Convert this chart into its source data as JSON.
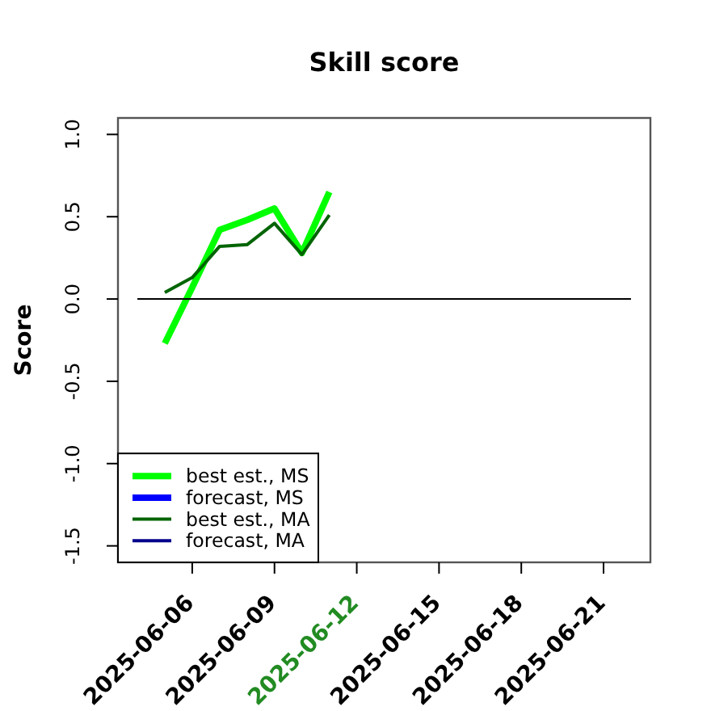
{
  "chart_data": {
    "type": "line",
    "title": "Skill score",
    "ylabel": "Score",
    "xlim": [
      "2025-06-03T07:00",
      "2025-06-22T17:00"
    ],
    "xticks": [
      "2025-06-06",
      "2025-06-09",
      "2025-06-12",
      "2025-06-15",
      "2025-06-18",
      "2025-06-21"
    ],
    "ylim": [
      -1.6,
      1.1
    ],
    "yticks": [
      {
        "value": -1.5,
        "label": "-1.5"
      },
      {
        "value": -1,
        "label": "-1.0"
      },
      {
        "value": -0.5,
        "label": "-0.5"
      },
      {
        "value": 0,
        "label": "0.0"
      },
      {
        "value": 0.5,
        "label": "0.5"
      },
      {
        "value": 1,
        "label": "1.0"
      }
    ],
    "x": [
      "2025-06-05",
      "2025-06-06",
      "2025-06-07",
      "2025-06-08",
      "2025-06-09",
      "2025-06-10",
      "2025-06-11"
    ],
    "series": [
      {
        "name": "best est., MS",
        "color": "#00ff00",
        "values": [
          -0.27,
          0.07,
          0.42,
          0.48,
          0.55,
          0.28,
          0.65
        ]
      },
      {
        "name": "forecast, MS",
        "color": "#0000ff",
        "values": [
          null,
          null,
          null,
          null,
          null,
          null,
          null
        ]
      },
      {
        "name": "best est., MA",
        "color": "#006400",
        "values": [
          0.04,
          0.13,
          0.32,
          0.33,
          0.46,
          0.27,
          0.51
        ]
      },
      {
        "name": "forecast, MA",
        "color": "#00008b",
        "values": [
          null,
          null,
          null,
          null,
          null,
          null,
          null
        ]
      },
      {
        "type": "line",
        "color": "#000000",
        "x": [
          "2025-06-04",
          "2025-06-22"
        ],
        "values": [
          0,
          0
        ]
      }
    ],
    "legend": "bottom left"
  }
}
